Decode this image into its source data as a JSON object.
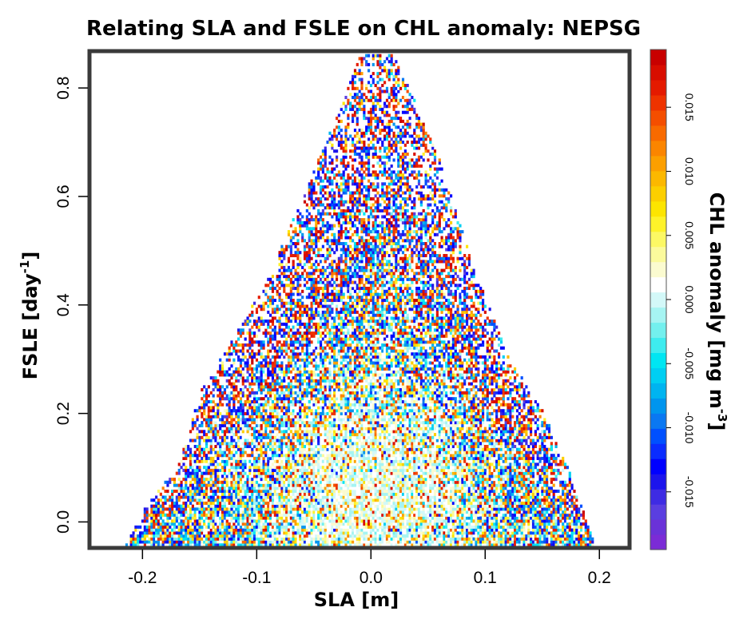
{
  "chart_data": {
    "type": "heatmap",
    "title": "Relating SLA and FSLE on CHL anomaly: NEPSG",
    "xlabel": "SLA [m]",
    "ylabel": {
      "text": "FSLE [day",
      "sup": "-1",
      "end": "]"
    },
    "colorbar_label": {
      "text": "CHL anomaly [mg m",
      "sup": "-3",
      "end": "]"
    },
    "xlim": [
      -0.245,
      0.225
    ],
    "ylim": [
      -0.045,
      0.865
    ],
    "x_ticks": [
      -0.2,
      -0.1,
      0.0,
      0.1,
      0.2
    ],
    "x_tick_labels": [
      "-0.2",
      "-0.1",
      "0.0",
      "0.1",
      "0.2"
    ],
    "y_ticks": [
      0.0,
      0.2,
      0.4,
      0.6,
      0.8
    ],
    "y_tick_labels": [
      "0.0",
      "0.2",
      "0.4",
      "0.6",
      "0.8"
    ],
    "color_range": [
      -0.0195,
      0.0195
    ],
    "color_ticks": [
      -0.015,
      -0.01,
      -0.005,
      0.0,
      0.005,
      0.01,
      0.015
    ],
    "color_tick_labels": [
      "-0.015",
      "-0.010",
      "-0.005",
      "0.000",
      "0.005",
      "0.010",
      "0.015"
    ],
    "colorbar_colors": [
      "#7b2bd6",
      "#6a32d8",
      "#5a3ee0",
      "#3e2be3",
      "#1c14ec",
      "#0000ff",
      "#0a2cff",
      "#0050ff",
      "#0a78f2",
      "#0095ee",
      "#00b4f0",
      "#00cff2",
      "#00e6f2",
      "#3eecef",
      "#73f0ee",
      "#a6f4f2",
      "#d3f8f8",
      "#ffffff",
      "#fbfbd0",
      "#fbfa9c",
      "#fcf864",
      "#fef22a",
      "#fde500",
      "#fccf00",
      "#fcb800",
      "#fc9f00",
      "#fb8500",
      "#f86a00",
      "#f44e00",
      "#ee3300",
      "#e41a00",
      "#d80d00",
      "#c80000"
    ],
    "data_generation": {
      "description": "Binned mean CHL anomaly per (SLA, FSLE) cell; cloud bounded by an inverted-V envelope",
      "x_bin": 0.002,
      "y_bin": 0.0055,
      "envelope": [
        [
          -0.215,
          -0.045
        ],
        [
          -0.2,
          0.02
        ],
        [
          -0.17,
          0.1
        ],
        [
          -0.15,
          0.24
        ],
        [
          -0.12,
          0.34
        ],
        [
          -0.09,
          0.45
        ],
        [
          -0.06,
          0.6
        ],
        [
          -0.03,
          0.75
        ],
        [
          -0.01,
          0.86
        ],
        [
          0.02,
          0.86
        ],
        [
          0.04,
          0.76
        ],
        [
          0.06,
          0.66
        ],
        [
          0.09,
          0.46
        ],
        [
          0.12,
          0.3
        ],
        [
          0.15,
          0.2
        ],
        [
          0.175,
          0.08
        ],
        [
          0.195,
          -0.045
        ]
      ],
      "seed": 12345
    }
  }
}
